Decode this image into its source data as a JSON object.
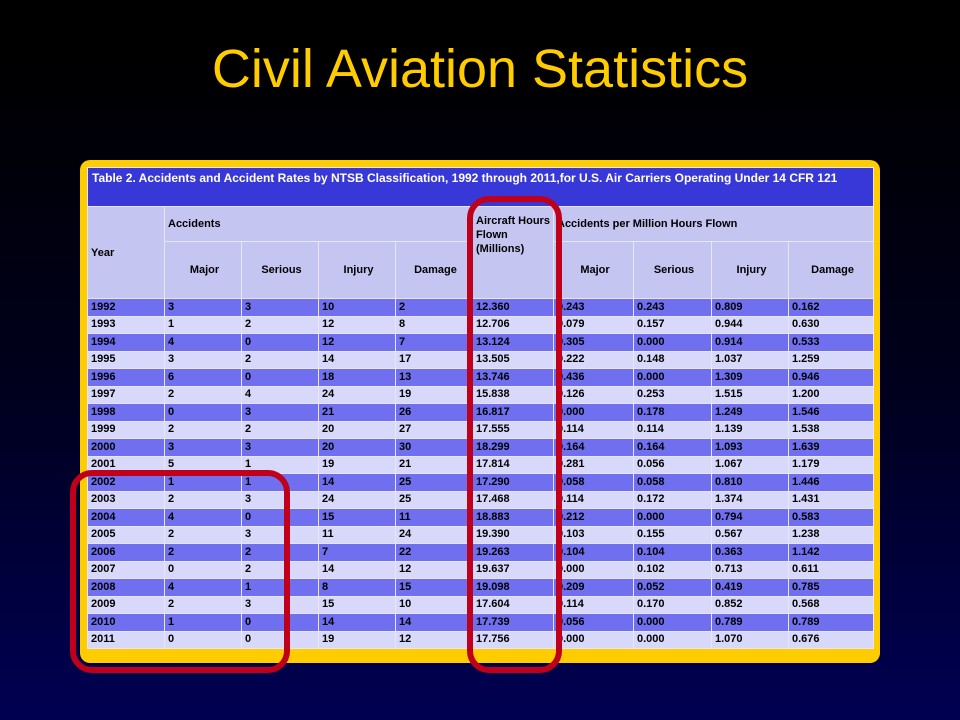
{
  "title": "Civil Aviation Statistics",
  "table": {
    "caption": "Table 2. Accidents and Accident Rates by NTSB Classification, 1992 through 2011,for U.S. Air Carriers Operating Under 14 CFR 121",
    "header_year": "Year",
    "header_accidents": "Accidents",
    "header_hours": "Aircraft Hours Flown (Millions)",
    "header_rates": "Accidents per Million Hours Flown",
    "sub_headers": [
      "Major",
      "Serious",
      "Injury",
      "Damage",
      "Major",
      "Serious",
      "Injury",
      "Damage"
    ],
    "rows": [
      [
        "1992",
        "3",
        "3",
        "10",
        "2",
        "12.360",
        "0.243",
        "0.243",
        "0.809",
        "0.162"
      ],
      [
        "1993",
        "1",
        "2",
        "12",
        "8",
        "12.706",
        "0.079",
        "0.157",
        "0.944",
        "0.630"
      ],
      [
        "1994",
        "4",
        "0",
        "12",
        "7",
        "13.124",
        "0.305",
        "0.000",
        "0.914",
        "0.533"
      ],
      [
        "1995",
        "3",
        "2",
        "14",
        "17",
        "13.505",
        "0.222",
        "0.148",
        "1.037",
        "1.259"
      ],
      [
        "1996",
        "6",
        "0",
        "18",
        "13",
        "13.746",
        "0.436",
        "0.000",
        "1.309",
        "0.946"
      ],
      [
        "1997",
        "2",
        "4",
        "24",
        "19",
        "15.838",
        "0.126",
        "0.253",
        "1.515",
        "1.200"
      ],
      [
        "1998",
        "0",
        "3",
        "21",
        "26",
        "16.817",
        "0.000",
        "0.178",
        "1.249",
        "1.546"
      ],
      [
        "1999",
        "2",
        "2",
        "20",
        "27",
        "17.555",
        "0.114",
        "0.114",
        "1.139",
        "1.538"
      ],
      [
        "2000",
        "3",
        "3",
        "20",
        "30",
        "18.299",
        "0.164",
        "0.164",
        "1.093",
        "1.639"
      ],
      [
        "2001",
        "5",
        "1",
        "19",
        "21",
        "17.814",
        "0.281",
        "0.056",
        "1.067",
        "1.179"
      ],
      [
        "2002",
        "1",
        "1",
        "14",
        "25",
        "17.290",
        "0.058",
        "0.058",
        "0.810",
        "1.446"
      ],
      [
        "2003",
        "2",
        "3",
        "24",
        "25",
        "17.468",
        "0.114",
        "0.172",
        "1.374",
        "1.431"
      ],
      [
        "2004",
        "4",
        "0",
        "15",
        "11",
        "18.883",
        "0.212",
        "0.000",
        "0.794",
        "0.583"
      ],
      [
        "2005",
        "2",
        "3",
        "11",
        "24",
        "19.390",
        "0.103",
        "0.155",
        "0.567",
        "1.238"
      ],
      [
        "2006",
        "2",
        "2",
        "7",
        "22",
        "19.263",
        "0.104",
        "0.104",
        "0.363",
        "1.142"
      ],
      [
        "2007",
        "0",
        "2",
        "14",
        "12",
        "19.637",
        "0.000",
        "0.102",
        "0.713",
        "0.611"
      ],
      [
        "2008",
        "4",
        "1",
        "8",
        "15",
        "19.098",
        "0.209",
        "0.052",
        "0.419",
        "0.785"
      ],
      [
        "2009",
        "2",
        "3",
        "15",
        "10",
        "17.604",
        "0.114",
        "0.170",
        "0.852",
        "0.568"
      ],
      [
        "2010",
        "1",
        "0",
        "14",
        "14",
        "17.739",
        "0.056",
        "0.000",
        "0.789",
        "0.789"
      ],
      [
        "2011",
        "0",
        "0",
        "19",
        "12",
        "17.756",
        "0.000",
        "0.000",
        "1.070",
        "0.676"
      ]
    ]
  },
  "colors": {
    "title": "#ffcc00",
    "frame": "#ffcc00",
    "caption_bg": "#3838d8",
    "header_bg": "#c5c5f2",
    "row_dark": "#6f6ff0",
    "row_light": "#d8d8fa",
    "highlight_marker": "#c0001a"
  }
}
